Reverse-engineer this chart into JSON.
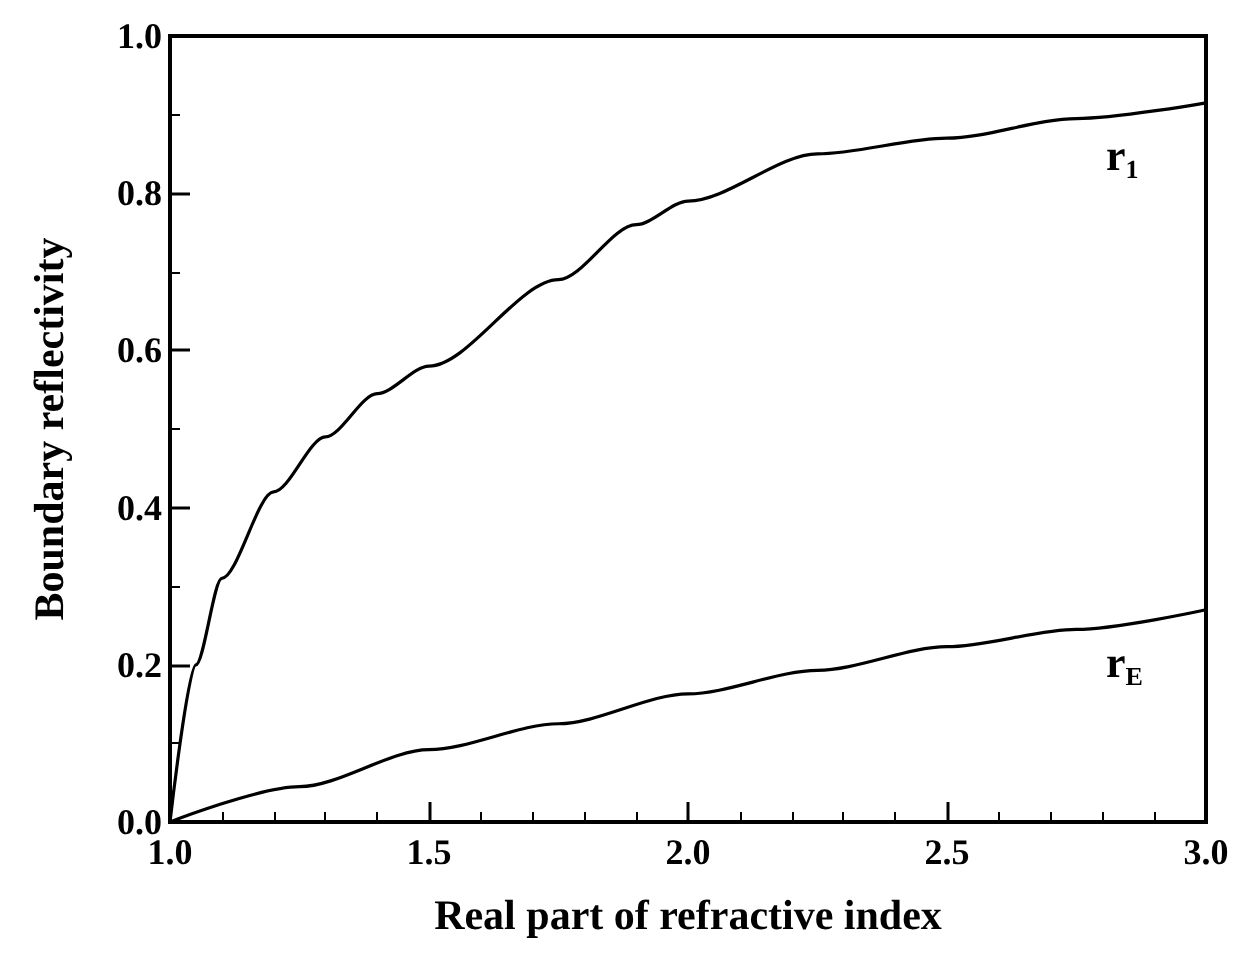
{
  "chart_data": {
    "type": "line",
    "xlabel": "Real part of refractive index",
    "ylabel": "Boundary reflectivity",
    "xlim": [
      1.0,
      3.0
    ],
    "xticks": [
      {
        "value": 1,
        "label": "1.0"
      },
      1.5,
      {
        "value": 2,
        "label": "2.0"
      },
      2.5,
      {
        "value": 3,
        "label": "3.0"
      }
    ],
    "ylim": [
      0.0,
      1.0
    ],
    "yticks": [
      {
        "value": 0,
        "label": "0.0"
      },
      0.2,
      0.4,
      0.6,
      0.8,
      {
        "value": 1,
        "label": "1.0"
      }
    ],
    "grid": false,
    "legend": false,
    "marker": "none",
    "line_style": "solid",
    "series": [
      {
        "name": "r$_{1}$",
        "color": "#000000",
        "x": [
          1.0,
          1.05,
          1.1,
          1.2,
          1.3,
          1.4,
          1.5,
          1.75,
          1.9,
          2.0,
          2.25,
          2.5,
          2.75,
          3.0
        ],
        "values": [
          0,
          0.2,
          0.31,
          0.42,
          0.49,
          0.545,
          0.58,
          0.69,
          0.76,
          0.79,
          0.85,
          0.87,
          0.895,
          0.915
        ]
      },
      {
        "name": "r$_{E}$",
        "color": "#000000",
        "x": [
          1.0,
          1.25,
          1.5,
          1.75,
          2.0,
          2.25,
          2.5,
          2.75,
          3.0
        ],
        "values": [
          0,
          0.045,
          0.092,
          0.125,
          0.163,
          0.193,
          0.223,
          0.245,
          0.27
        ]
      }
    ]
  }
}
